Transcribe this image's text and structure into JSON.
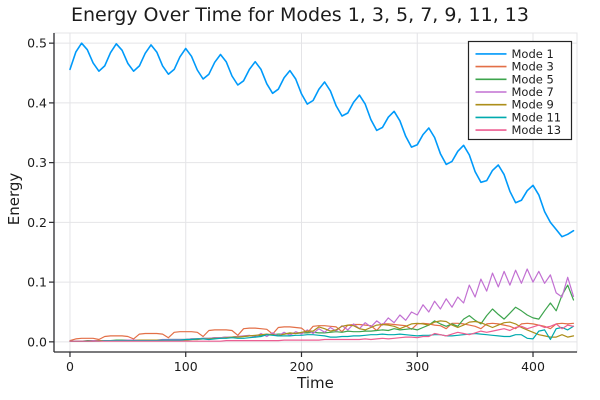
{
  "page": {
    "background": "#FFFFFF",
    "text_color": "#1C1C1C",
    "grid_color": "#E4E4E7",
    "spine_color": "#2A2A2E",
    "legend_border": "#232323",
    "legend_background": "#FFFFFF"
  },
  "chart_data": {
    "type": "line",
    "title": "Energy Over Time for Modes 1, 3, 5, 7, 9, 11, 13",
    "xlabel": "Time",
    "ylabel": "Energy",
    "xlim": [
      -13.8,
      438
    ],
    "ylim": [
      -0.017,
      0.517
    ],
    "xtick_values": [
      0,
      100,
      200,
      300,
      400
    ],
    "xtick_labels": [
      "0",
      "100",
      "200",
      "300",
      "400"
    ],
    "ytick_values": [
      0.0,
      0.1,
      0.2,
      0.3,
      0.4,
      0.5
    ],
    "ytick_labels": [
      "0.0",
      "0.1",
      "0.2",
      "0.3",
      "0.4",
      "0.5"
    ],
    "grid": true,
    "legend_position": "top-right",
    "x_sampling": {
      "start": 0,
      "step": 5,
      "count": 88
    },
    "series": [
      {
        "name": "Mode 1",
        "color": "#009AFA",
        "width": 1.6,
        "values": [
          0.456,
          0.485,
          0.5,
          0.489,
          0.467,
          0.453,
          0.462,
          0.484,
          0.499,
          0.488,
          0.466,
          0.453,
          0.462,
          0.483,
          0.497,
          0.485,
          0.462,
          0.448,
          0.456,
          0.477,
          0.491,
          0.478,
          0.455,
          0.44,
          0.448,
          0.468,
          0.481,
          0.469,
          0.445,
          0.43,
          0.437,
          0.456,
          0.469,
          0.456,
          0.432,
          0.416,
          0.423,
          0.442,
          0.454,
          0.44,
          0.415,
          0.398,
          0.404,
          0.423,
          0.435,
          0.42,
          0.395,
          0.378,
          0.383,
          0.401,
          0.413,
          0.398,
          0.372,
          0.354,
          0.359,
          0.376,
          0.386,
          0.37,
          0.344,
          0.326,
          0.33,
          0.347,
          0.358,
          0.342,
          0.315,
          0.297,
          0.302,
          0.319,
          0.329,
          0.313,
          0.285,
          0.267,
          0.27,
          0.287,
          0.296,
          0.28,
          0.252,
          0.233,
          0.237,
          0.253,
          0.262,
          0.246,
          0.218,
          0.2,
          0.188,
          0.176,
          0.18,
          0.186
        ]
      },
      {
        "name": "Mode 3",
        "color": "#E36F47",
        "width": 1.2,
        "values": [
          0.002,
          0.005,
          0.006,
          0.006,
          0.006,
          0.004,
          0.009,
          0.01,
          0.01,
          0.01,
          0.009,
          0.005,
          0.013,
          0.014,
          0.014,
          0.014,
          0.013,
          0.007,
          0.016,
          0.017,
          0.017,
          0.017,
          0.016,
          0.009,
          0.019,
          0.02,
          0.02,
          0.02,
          0.019,
          0.011,
          0.022,
          0.023,
          0.023,
          0.022,
          0.021,
          0.013,
          0.024,
          0.025,
          0.025,
          0.024,
          0.023,
          0.015,
          0.026,
          0.027,
          0.027,
          0.026,
          0.025,
          0.017,
          0.028,
          0.029,
          0.029,
          0.028,
          0.027,
          0.019,
          0.03,
          0.03,
          0.029,
          0.028,
          0.027,
          0.021,
          0.03,
          0.031,
          0.03,
          0.028,
          0.027,
          0.022,
          0.031,
          0.031,
          0.03,
          0.028,
          0.026,
          0.022,
          0.03,
          0.031,
          0.03,
          0.028,
          0.026,
          0.022,
          0.03,
          0.031,
          0.03,
          0.028,
          0.026,
          0.022,
          0.03,
          0.031,
          0.03,
          0.031
        ]
      },
      {
        "name": "Mode 5",
        "color": "#3DA44D",
        "width": 1.2,
        "values": [
          0.001,
          0.001,
          0.001,
          0.002,
          0.002,
          0.002,
          0.002,
          0.002,
          0.003,
          0.003,
          0.003,
          0.003,
          0.003,
          0.003,
          0.003,
          0.003,
          0.003,
          0.004,
          0.004,
          0.004,
          0.004,
          0.005,
          0.005,
          0.006,
          0.006,
          0.007,
          0.007,
          0.008,
          0.008,
          0.009,
          0.009,
          0.01,
          0.01,
          0.011,
          0.012,
          0.012,
          0.013,
          0.013,
          0.014,
          0.014,
          0.015,
          0.015,
          0.016,
          0.015,
          0.015,
          0.016,
          0.017,
          0.016,
          0.018,
          0.017,
          0.017,
          0.018,
          0.018,
          0.019,
          0.02,
          0.019,
          0.022,
          0.02,
          0.021,
          0.022,
          0.02,
          0.024,
          0.028,
          0.035,
          0.03,
          0.026,
          0.03,
          0.026,
          0.038,
          0.044,
          0.036,
          0.03,
          0.044,
          0.055,
          0.046,
          0.038,
          0.048,
          0.058,
          0.052,
          0.045,
          0.04,
          0.038,
          0.052,
          0.065,
          0.052,
          0.078,
          0.095,
          0.07
        ]
      },
      {
        "name": "Mode 7",
        "color": "#C270D2",
        "width": 1.2,
        "values": [
          0.001,
          0.001,
          0.001,
          0.001,
          0.002,
          0.002,
          0.002,
          0.002,
          0.002,
          0.002,
          0.003,
          0.003,
          0.003,
          0.003,
          0.003,
          0.003,
          0.004,
          0.004,
          0.004,
          0.004,
          0.004,
          0.005,
          0.005,
          0.006,
          0.006,
          0.007,
          0.007,
          0.008,
          0.008,
          0.009,
          0.01,
          0.011,
          0.008,
          0.014,
          0.009,
          0.015,
          0.01,
          0.016,
          0.011,
          0.017,
          0.013,
          0.02,
          0.014,
          0.022,
          0.016,
          0.024,
          0.018,
          0.027,
          0.02,
          0.03,
          0.022,
          0.032,
          0.025,
          0.035,
          0.028,
          0.04,
          0.032,
          0.045,
          0.036,
          0.05,
          0.045,
          0.062,
          0.05,
          0.068,
          0.055,
          0.072,
          0.058,
          0.075,
          0.065,
          0.095,
          0.075,
          0.105,
          0.085,
          0.115,
          0.092,
          0.118,
          0.095,
          0.12,
          0.098,
          0.122,
          0.1,
          0.118,
          0.098,
          0.112,
          0.082,
          0.075,
          0.108,
          0.076
        ]
      },
      {
        "name": "Mode 9",
        "color": "#AC8E1A",
        "width": 1.2,
        "values": [
          0.001,
          0.001,
          0.001,
          0.001,
          0.001,
          0.002,
          0.002,
          0.002,
          0.002,
          0.002,
          0.002,
          0.002,
          0.003,
          0.003,
          0.003,
          0.003,
          0.003,
          0.003,
          0.003,
          0.003,
          0.003,
          0.004,
          0.004,
          0.005,
          0.005,
          0.006,
          0.006,
          0.007,
          0.008,
          0.008,
          0.009,
          0.01,
          0.011,
          0.012,
          0.013,
          0.012,
          0.01,
          0.013,
          0.015,
          0.014,
          0.016,
          0.018,
          0.018,
          0.025,
          0.022,
          0.018,
          0.02,
          0.026,
          0.028,
          0.027,
          0.022,
          0.02,
          0.024,
          0.028,
          0.029,
          0.028,
          0.026,
          0.022,
          0.026,
          0.03,
          0.031,
          0.03,
          0.028,
          0.033,
          0.035,
          0.034,
          0.028,
          0.024,
          0.028,
          0.033,
          0.034,
          0.032,
          0.028,
          0.024,
          0.028,
          0.032,
          0.033,
          0.03,
          0.024,
          0.02,
          0.016,
          0.012,
          0.01,
          0.008,
          0.008,
          0.012,
          0.008,
          0.01
        ]
      },
      {
        "name": "Mode 11",
        "color": "#00AAAE",
        "width": 1.2,
        "values": [
          0.001,
          0.001,
          0.001,
          0.001,
          0.001,
          0.001,
          0.002,
          0.002,
          0.002,
          0.002,
          0.002,
          0.002,
          0.002,
          0.002,
          0.002,
          0.002,
          0.003,
          0.003,
          0.003,
          0.003,
          0.004,
          0.004,
          0.005,
          0.005,
          0.004,
          0.005,
          0.006,
          0.006,
          0.007,
          0.006,
          0.006,
          0.007,
          0.008,
          0.009,
          0.012,
          0.011,
          0.01,
          0.01,
          0.01,
          0.011,
          0.011,
          0.012,
          0.012,
          0.011,
          0.01,
          0.008,
          0.008,
          0.009,
          0.009,
          0.01,
          0.01,
          0.011,
          0.012,
          0.012,
          0.013,
          0.012,
          0.012,
          0.013,
          0.012,
          0.011,
          0.01,
          0.011,
          0.011,
          0.012,
          0.012,
          0.01,
          0.01,
          0.011,
          0.012,
          0.013,
          0.014,
          0.013,
          0.012,
          0.011,
          0.01,
          0.009,
          0.009,
          0.012,
          0.012,
          0.006,
          0.005,
          0.018,
          0.02,
          0.004,
          0.022,
          0.024,
          0.02,
          0.026
        ]
      },
      {
        "name": "Mode 13",
        "color": "#ED5E92",
        "width": 1.2,
        "values": [
          0.001,
          0.001,
          0.001,
          0.001,
          0.001,
          0.001,
          0.001,
          0.001,
          0.001,
          0.001,
          0.001,
          0.001,
          0.001,
          0.001,
          0.001,
          0.001,
          0.001,
          0.001,
          0.001,
          0.001,
          0.001,
          0.001,
          0.001,
          0.001,
          0.001,
          0.001,
          0.001,
          0.002,
          0.002,
          0.002,
          0.002,
          0.002,
          0.002,
          0.002,
          0.002,
          0.002,
          0.002,
          0.003,
          0.003,
          0.003,
          0.003,
          0.003,
          0.003,
          0.003,
          0.004,
          0.004,
          0.004,
          0.004,
          0.004,
          0.004,
          0.004,
          0.005,
          0.004,
          0.005,
          0.006,
          0.005,
          0.006,
          0.007,
          0.008,
          0.008,
          0.007,
          0.009,
          0.009,
          0.014,
          0.012,
          0.01,
          0.013,
          0.016,
          0.014,
          0.012,
          0.015,
          0.018,
          0.016,
          0.018,
          0.02,
          0.022,
          0.019,
          0.024,
          0.026,
          0.022,
          0.025,
          0.028,
          0.024,
          0.026,
          0.03,
          0.022,
          0.028,
          0.026
        ]
      }
    ]
  }
}
